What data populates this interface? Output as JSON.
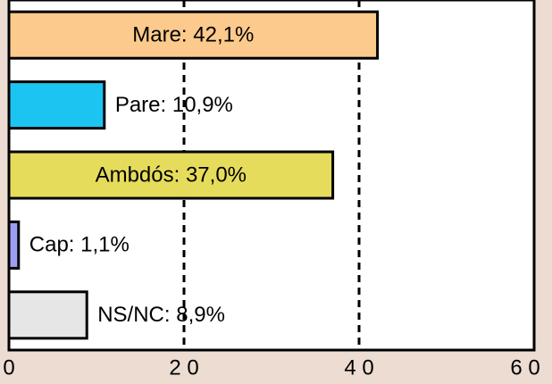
{
  "chart_data": {
    "type": "hbar",
    "values": [
      42.1,
      10.9,
      37.0,
      1.1,
      8.9
    ],
    "value_labels": [
      "Mare: 42,1%",
      "Pare: 10,9%",
      "Ambdós: 37,0%",
      "Cap: 1,1%",
      "NS/NC: 8,9%"
    ],
    "colors": [
      "#fcca8c",
      "#1cc4f2",
      "#e6dc5c",
      "#9c9ef2",
      "#e6e6e6"
    ],
    "xlim": [
      0,
      60
    ],
    "xticks": [
      0,
      {
        "value": 20,
        "label": "2 0"
      },
      {
        "value": 40,
        "label": "4 0"
      },
      {
        "value": 60,
        "label": "6 0"
      }
    ],
    "grid": true
  }
}
